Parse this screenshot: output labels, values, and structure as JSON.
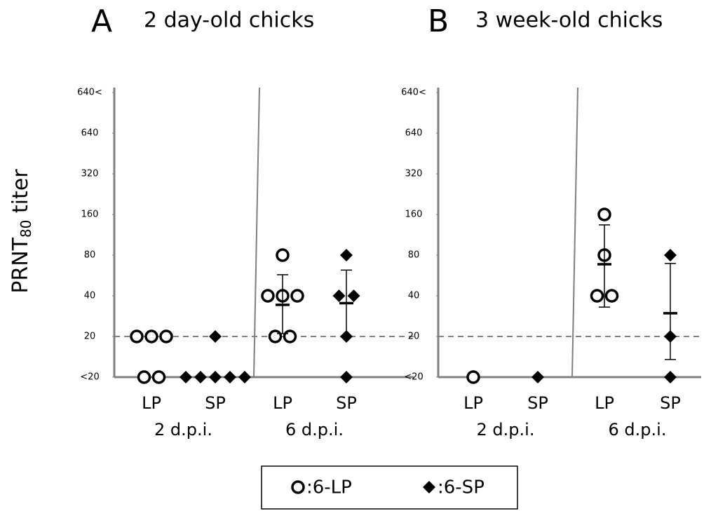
{
  "chart_data": [
    {
      "type": "scatter",
      "panel": "A",
      "title": "2 day-old chicks",
      "y_label": {
        "main": "PRNT",
        "sub": "80",
        "rest": " titer"
      },
      "log_scale": true,
      "ylim": [
        10,
        1280
      ],
      "yticks": [
        {
          "value": 10,
          "label": "<20"
        },
        20,
        40,
        80,
        160,
        320,
        640,
        {
          "value": 1280,
          "label": "640<"
        }
      ],
      "threshold": 20,
      "groups": [
        "2 d.p.i.",
        "6 d.p.i."
      ],
      "columns": [
        {
          "label": "LP",
          "marker": "circle",
          "values": [
            20,
            20,
            20,
            10,
            10
          ]
        },
        {
          "label": "SP",
          "marker": "diamond",
          "values": [
            20,
            10,
            10,
            10,
            10,
            10
          ]
        },
        {
          "label": "LP",
          "marker": "circle",
          "values": [
            80,
            40,
            40,
            40,
            20,
            20
          ],
          "mean": 34.3,
          "error_low": 21,
          "error_high": 57.3
        },
        {
          "label": "SP",
          "marker": "diamond",
          "values": [
            80,
            40,
            40,
            20,
            10
          ],
          "mean": 35.3,
          "error_low": 20,
          "error_high": 62
        }
      ]
    },
    {
      "type": "scatter",
      "panel": "B",
      "title": "3 week-old chicks",
      "log_scale": true,
      "ylim": [
        10,
        1280
      ],
      "yticks": [
        {
          "value": 10,
          "label": "<20"
        },
        20,
        40,
        80,
        160,
        320,
        640,
        {
          "value": 1280,
          "label": "640<"
        }
      ],
      "threshold": 20,
      "groups": [
        "2 d.p.i.",
        "6 d.p.i."
      ],
      "columns": [
        {
          "label": "LP",
          "marker": "circle",
          "values": [
            10
          ]
        },
        {
          "label": "SP",
          "marker": "diamond",
          "values": [
            10
          ]
        },
        {
          "label": "LP",
          "marker": "circle",
          "values": [
            160,
            80,
            40,
            40
          ],
          "mean": 68.5,
          "error_low": 33,
          "error_high": 134
        },
        {
          "label": "SP",
          "marker": "diamond",
          "values": [
            80,
            20,
            10
          ],
          "mean": 29.7,
          "error_low": 13.5,
          "error_high": 69.4
        }
      ]
    }
  ],
  "legend": [
    {
      "label": ":6-LP",
      "marker": "circle"
    },
    {
      "label": ":6-SP",
      "marker": "diamond"
    }
  ]
}
